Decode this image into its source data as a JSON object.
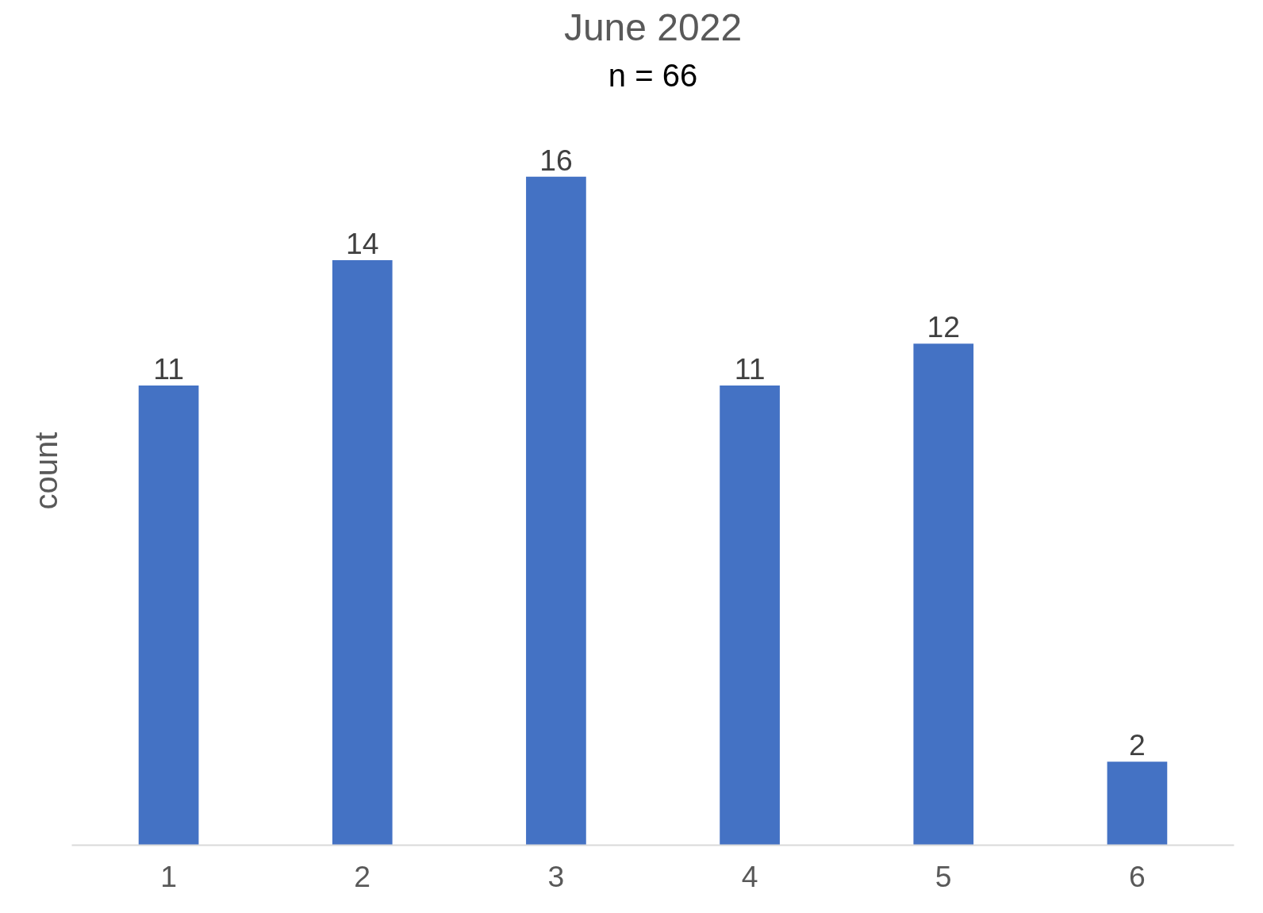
{
  "chart_data": {
    "type": "bar",
    "title": "June 2022",
    "subtitle": "n = 66",
    "ylabel": "count",
    "categories": [
      "1",
      "2",
      "3",
      "4",
      "5",
      "6"
    ],
    "values": [
      11,
      14,
      16,
      11,
      12,
      2
    ],
    "color": "#4472c4",
    "data_labels": true,
    "grid": false
  }
}
